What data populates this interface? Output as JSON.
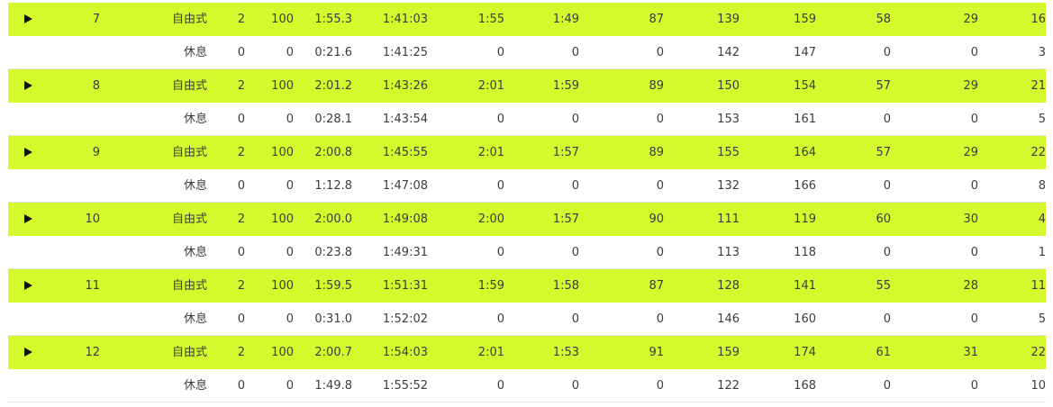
{
  "rows": [
    {
      "kind": "lap",
      "lap": "7",
      "stroke": "自由式",
      "strokes": "2",
      "distance": "100",
      "time": "1:55.3",
      "cumulative": "1:41:03",
      "pace": "1:55",
      "best_pace": "1:49",
      "swolf": "87",
      "avg_hr": "139",
      "max_hr": "159",
      "spm": "58",
      "total_strokes": "29",
      "calories": "16"
    },
    {
      "kind": "rest",
      "lap": "",
      "stroke": "休息",
      "strokes": "0",
      "distance": "0",
      "time": "0:21.6",
      "cumulative": "1:41:25",
      "pace": "0",
      "best_pace": "0",
      "swolf": "0",
      "avg_hr": "142",
      "max_hr": "147",
      "spm": "0",
      "total_strokes": "0",
      "calories": "3"
    },
    {
      "kind": "lap",
      "lap": "8",
      "stroke": "自由式",
      "strokes": "2",
      "distance": "100",
      "time": "2:01.2",
      "cumulative": "1:43:26",
      "pace": "2:01",
      "best_pace": "1:59",
      "swolf": "89",
      "avg_hr": "150",
      "max_hr": "154",
      "spm": "57",
      "total_strokes": "29",
      "calories": "21"
    },
    {
      "kind": "rest",
      "lap": "",
      "stroke": "休息",
      "strokes": "0",
      "distance": "0",
      "time": "0:28.1",
      "cumulative": "1:43:54",
      "pace": "0",
      "best_pace": "0",
      "swolf": "0",
      "avg_hr": "153",
      "max_hr": "161",
      "spm": "0",
      "total_strokes": "0",
      "calories": "5"
    },
    {
      "kind": "lap",
      "lap": "9",
      "stroke": "自由式",
      "strokes": "2",
      "distance": "100",
      "time": "2:00.8",
      "cumulative": "1:45:55",
      "pace": "2:01",
      "best_pace": "1:57",
      "swolf": "89",
      "avg_hr": "155",
      "max_hr": "164",
      "spm": "57",
      "total_strokes": "29",
      "calories": "22"
    },
    {
      "kind": "rest",
      "lap": "",
      "stroke": "休息",
      "strokes": "0",
      "distance": "0",
      "time": "1:12.8",
      "cumulative": "1:47:08",
      "pace": "0",
      "best_pace": "0",
      "swolf": "0",
      "avg_hr": "132",
      "max_hr": "166",
      "spm": "0",
      "total_strokes": "0",
      "calories": "8"
    },
    {
      "kind": "lap",
      "lap": "10",
      "stroke": "自由式",
      "strokes": "2",
      "distance": "100",
      "time": "2:00.0",
      "cumulative": "1:49:08",
      "pace": "2:00",
      "best_pace": "1:57",
      "swolf": "90",
      "avg_hr": "111",
      "max_hr": "119",
      "spm": "60",
      "total_strokes": "30",
      "calories": "4"
    },
    {
      "kind": "rest",
      "lap": "",
      "stroke": "休息",
      "strokes": "0",
      "distance": "0",
      "time": "0:23.8",
      "cumulative": "1:49:31",
      "pace": "0",
      "best_pace": "0",
      "swolf": "0",
      "avg_hr": "113",
      "max_hr": "118",
      "spm": "0",
      "total_strokes": "0",
      "calories": "1"
    },
    {
      "kind": "lap",
      "lap": "11",
      "stroke": "自由式",
      "strokes": "2",
      "distance": "100",
      "time": "1:59.5",
      "cumulative": "1:51:31",
      "pace": "1:59",
      "best_pace": "1:58",
      "swolf": "87",
      "avg_hr": "128",
      "max_hr": "141",
      "spm": "55",
      "total_strokes": "28",
      "calories": "11"
    },
    {
      "kind": "rest",
      "lap": "",
      "stroke": "休息",
      "strokes": "0",
      "distance": "0",
      "time": "0:31.0",
      "cumulative": "1:52:02",
      "pace": "0",
      "best_pace": "0",
      "swolf": "0",
      "avg_hr": "146",
      "max_hr": "160",
      "spm": "0",
      "total_strokes": "0",
      "calories": "5"
    },
    {
      "kind": "lap",
      "lap": "12",
      "stroke": "自由式",
      "strokes": "2",
      "distance": "100",
      "time": "2:00.7",
      "cumulative": "1:54:03",
      "pace": "2:01",
      "best_pace": "1:53",
      "swolf": "91",
      "avg_hr": "159",
      "max_hr": "174",
      "spm": "61",
      "total_strokes": "31",
      "calories": "22"
    },
    {
      "kind": "rest",
      "lap": "",
      "stroke": "休息",
      "strokes": "0",
      "distance": "0",
      "time": "1:49.8",
      "cumulative": "1:55:52",
      "pace": "0",
      "best_pace": "0",
      "swolf": "0",
      "avg_hr": "122",
      "max_hr": "168",
      "spm": "0",
      "total_strokes": "0",
      "calories": "10"
    }
  ],
  "colors": {
    "lap_row_bg": "#d4fa2d",
    "rest_row_bg": "#ffffff",
    "expand_icon": "#111111"
  },
  "icons": {
    "expand": "play-triangle-icon"
  }
}
